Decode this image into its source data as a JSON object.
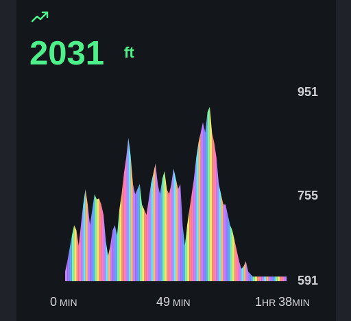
{
  "header": {
    "icon": "trending-up-icon",
    "value": "2031",
    "unit": "ft",
    "accent_color": "#4ef08a"
  },
  "axis": {
    "y_ticks": [
      "951",
      "755",
      "591"
    ],
    "x_ticks": [
      {
        "num": "0",
        "unit": " MIN"
      },
      {
        "num": "49",
        "unit": " MIN"
      },
      {
        "num": "1",
        "unit": "HR ",
        "num2": "38",
        "unit2": "MIN"
      }
    ]
  },
  "chart_data": {
    "type": "area",
    "title": "",
    "xlabel": "",
    "ylabel": "",
    "x_unit": "minutes",
    "xlim": [
      0,
      98
    ],
    "ylim": [
      591,
      951
    ],
    "x": [
      0,
      1,
      2,
      3,
      4,
      5,
      6,
      7,
      8,
      9,
      10,
      11,
      12,
      13,
      14,
      15,
      16,
      17,
      18,
      19,
      20,
      21,
      22,
      23,
      24,
      25,
      26,
      27,
      28,
      29,
      30,
      31,
      32,
      33,
      34,
      35,
      36,
      37,
      38,
      39,
      40,
      41,
      42,
      43,
      44,
      45,
      46,
      47,
      48,
      49,
      50,
      51,
      52,
      53,
      54,
      55,
      56,
      57,
      58,
      59,
      60,
      61,
      62,
      63,
      64,
      65,
      66,
      67,
      68,
      69,
      70,
      71,
      72,
      73,
      74,
      75,
      76,
      77,
      78,
      79,
      80,
      81,
      82,
      83,
      84,
      85,
      86,
      87,
      88,
      89,
      90,
      91,
      92,
      93,
      94,
      95,
      96,
      97,
      98
    ],
    "y": [
      610,
      630,
      655,
      680,
      700,
      690,
      660,
      700,
      740,
      770,
      740,
      700,
      730,
      760,
      750,
      752,
      740,
      720,
      670,
      640,
      660,
      690,
      700,
      680,
      730,
      760,
      800,
      830,
      870,
      835,
      780,
      760,
      770,
      780,
      740,
      730,
      720,
      750,
      780,
      800,
      820,
      780,
      760,
      790,
      805,
      770,
      760,
      780,
      810,
      790,
      770,
      780,
      700,
      660,
      700,
      730,
      760,
      790,
      830,
      860,
      880,
      900,
      880,
      920,
      930,
      880,
      860,
      830,
      780,
      760,
      740,
      740,
      720,
      700,
      690,
      670,
      650,
      630,
      615,
      620,
      630,
      610,
      605,
      600,
      600,
      600,
      600,
      600,
      600,
      600,
      600,
      600,
      600,
      600,
      600,
      600,
      600,
      600,
      600
    ],
    "colors": [
      "#c77dff",
      "#9b7bff",
      "#5ea8ff",
      "#7ef2a0",
      "#f4e66b",
      "#ff8a80",
      "#ff79c6",
      "#b389ff",
      "#6be4ff",
      "#ffb86c"
    ]
  }
}
